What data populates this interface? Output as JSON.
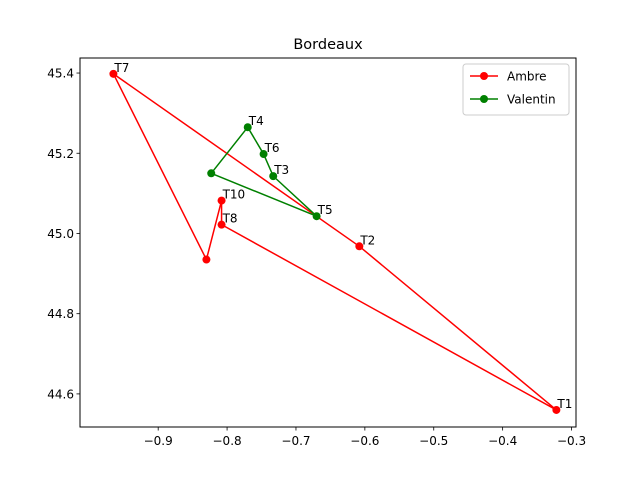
{
  "chart_data": {
    "type": "line",
    "title": "Bordeaux",
    "xlabel": "",
    "ylabel": "",
    "xlim": [
      -1.0135,
      -0.2935
    ],
    "ylim": [
      44.5175,
      45.4375
    ],
    "xticks": [
      -0.9,
      -0.8,
      -0.7,
      -0.6,
      -0.5,
      -0.4,
      -0.3
    ],
    "yticks": [
      44.6,
      44.8,
      45.0,
      45.2,
      45.4
    ],
    "xtick_labels": [
      "−0.9",
      "−0.8",
      "−0.7",
      "−0.6",
      "−0.5",
      "−0.4",
      "−0.3"
    ],
    "ytick_labels": [
      "44.6",
      "44.8",
      "45.0",
      "45.2",
      "45.4"
    ],
    "grid": false,
    "legend_position": "upper right",
    "series": [
      {
        "name": "Ambre",
        "color": "#ff0000",
        "marker": "circle",
        "points": [
          {
            "label": "T1",
            "x": -0.322,
            "y": 44.56
          },
          {
            "label": "T2",
            "x": -0.608,
            "y": 44.968
          },
          {
            "label": "T7",
            "x": -0.965,
            "y": 45.398
          },
          {
            "label": "",
            "x": -0.83,
            "y": 44.935
          },
          {
            "label": "T10",
            "x": -0.808,
            "y": 45.082
          },
          {
            "label": "T8",
            "x": -0.808,
            "y": 45.022
          }
        ],
        "closed": true
      },
      {
        "name": "Valentin",
        "color": "#008000",
        "marker": "circle",
        "points": [
          {
            "label": "T4",
            "x": -0.77,
            "y": 45.265
          },
          {
            "label": "T6",
            "x": -0.747,
            "y": 45.198
          },
          {
            "label": "T3",
            "x": -0.733,
            "y": 45.143
          },
          {
            "label": "T5",
            "x": -0.67,
            "y": 45.043
          },
          {
            "label": "",
            "x": -0.823,
            "y": 45.15
          }
        ],
        "closed": true
      }
    ]
  }
}
